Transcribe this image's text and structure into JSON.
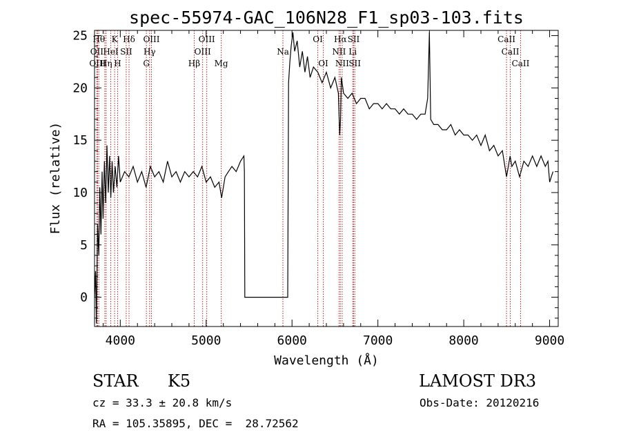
{
  "chart_data": {
    "type": "line",
    "title": "spec-55974-GAC_106N28_F1_sp03-103.fits",
    "xlabel": "Wavelength (Å)",
    "ylabel": "Flux (relative)",
    "xlim": [
      3700,
      9100
    ],
    "ylim": [
      -2.8,
      25.5
    ],
    "xticks": [
      4000,
      5000,
      6000,
      7000,
      8000,
      9000
    ],
    "yticks": [
      0,
      5,
      10,
      15,
      20,
      25
    ],
    "series": [
      {
        "name": "flux",
        "points": [
          [
            3700,
            0
          ],
          [
            3712,
            2.5
          ],
          [
            3722,
            -2.5
          ],
          [
            3735,
            7.0
          ],
          [
            3750,
            4.0
          ],
          [
            3762,
            10.5
          ],
          [
            3775,
            6.0
          ],
          [
            3788,
            12.0
          ],
          [
            3800,
            7.5
          ],
          [
            3815,
            13.0
          ],
          [
            3830,
            9.0
          ],
          [
            3845,
            14.5
          ],
          [
            3860,
            10.0
          ],
          [
            3875,
            13.5
          ],
          [
            3890,
            9.5
          ],
          [
            3905,
            13.0
          ],
          [
            3920,
            10.0
          ],
          [
            3940,
            12.5
          ],
          [
            3960,
            10.5
          ],
          [
            3980,
            13.5
          ],
          [
            4000,
            11.0
          ],
          [
            4050,
            12.0
          ],
          [
            4100,
            11.5
          ],
          [
            4150,
            12.5
          ],
          [
            4200,
            11.0
          ],
          [
            4250,
            12.0
          ],
          [
            4300,
            10.5
          ],
          [
            4350,
            12.5
          ],
          [
            4400,
            11.5
          ],
          [
            4450,
            12.0
          ],
          [
            4500,
            11.0
          ],
          [
            4550,
            13.0
          ],
          [
            4600,
            11.5
          ],
          [
            4650,
            12.0
          ],
          [
            4700,
            11.0
          ],
          [
            4750,
            12.0
          ],
          [
            4800,
            11.5
          ],
          [
            4850,
            12.0
          ],
          [
            4900,
            11.5
          ],
          [
            4950,
            12.5
          ],
          [
            5000,
            11.0
          ],
          [
            5050,
            11.5
          ],
          [
            5100,
            10.5
          ],
          [
            5150,
            11.0
          ],
          [
            5180,
            9.5
          ],
          [
            5220,
            11.5
          ],
          [
            5260,
            12.0
          ],
          [
            5300,
            12.5
          ],
          [
            5350,
            12.0
          ],
          [
            5400,
            13.0
          ],
          [
            5440,
            13.5
          ],
          [
            5445,
            12.0
          ],
          [
            5450,
            0
          ],
          [
            5900,
            0
          ],
          [
            5950,
            0
          ],
          [
            5960,
            20.5
          ],
          [
            5975,
            22.5
          ],
          [
            5990,
            24.0
          ],
          [
            6010,
            25.3
          ],
          [
            6030,
            23.5
          ],
          [
            6060,
            24.5
          ],
          [
            6090,
            22.0
          ],
          [
            6120,
            23.5
          ],
          [
            6150,
            21.5
          ],
          [
            6180,
            23.0
          ],
          [
            6210,
            21.0
          ],
          [
            6250,
            22.0
          ],
          [
            6300,
            21.5
          ],
          [
            6350,
            20.5
          ],
          [
            6400,
            21.5
          ],
          [
            6450,
            20.0
          ],
          [
            6500,
            21.0
          ],
          [
            6540,
            19.5
          ],
          [
            6555,
            15.5
          ],
          [
            6565,
            17.0
          ],
          [
            6575,
            21.0
          ],
          [
            6600,
            19.5
          ],
          [
            6650,
            19.0
          ],
          [
            6700,
            19.5
          ],
          [
            6750,
            18.5
          ],
          [
            6800,
            19.0
          ],
          [
            6850,
            19.0
          ],
          [
            6900,
            18.0
          ],
          [
            6950,
            18.5
          ],
          [
            7000,
            18.5
          ],
          [
            7050,
            18.0
          ],
          [
            7100,
            18.5
          ],
          [
            7150,
            18.0
          ],
          [
            7200,
            18.0
          ],
          [
            7250,
            17.5
          ],
          [
            7300,
            18.0
          ],
          [
            7350,
            17.5
          ],
          [
            7400,
            17.5
          ],
          [
            7450,
            17.0
          ],
          [
            7500,
            17.5
          ],
          [
            7550,
            17.5
          ],
          [
            7580,
            19.0
          ],
          [
            7600,
            25.3
          ],
          [
            7615,
            17.0
          ],
          [
            7650,
            16.5
          ],
          [
            7700,
            16.5
          ],
          [
            7750,
            16.0
          ],
          [
            7800,
            16.0
          ],
          [
            7850,
            16.5
          ],
          [
            7900,
            15.5
          ],
          [
            7950,
            16.0
          ],
          [
            8000,
            15.5
          ],
          [
            8050,
            15.5
          ],
          [
            8100,
            15.0
          ],
          [
            8150,
            15.5
          ],
          [
            8200,
            14.5
          ],
          [
            8250,
            15.5
          ],
          [
            8300,
            14.0
          ],
          [
            8350,
            14.5
          ],
          [
            8400,
            13.5
          ],
          [
            8450,
            14.0
          ],
          [
            8498,
            11.5
          ],
          [
            8540,
            13.5
          ],
          [
            8560,
            12.5
          ],
          [
            8600,
            13.0
          ],
          [
            8650,
            11.5
          ],
          [
            8700,
            13.0
          ],
          [
            8750,
            12.5
          ],
          [
            8800,
            13.5
          ],
          [
            8850,
            12.5
          ],
          [
            8900,
            13.5
          ],
          [
            8950,
            12.5
          ],
          [
            8980,
            13.0
          ],
          [
            9000,
            11.0
          ],
          [
            9020,
            11.5
          ],
          [
            9040,
            12.0
          ]
        ]
      }
    ],
    "lines": [
      {
        "w": 3750,
        "label": "Hθ"
      },
      {
        "w": 3727,
        "label": "OII"
      },
      {
        "w": 3735,
        "label": "OIII"
      },
      {
        "w": 3820,
        "label": "HeI"
      },
      {
        "w": 3835,
        "label": "Hη"
      },
      {
        "w": 3889,
        "label": "HeI"
      },
      {
        "w": 3934,
        "label": "K"
      },
      {
        "w": 3969,
        "label": "H"
      },
      {
        "w": 4069,
        "label": "SII"
      },
      {
        "w": 4102,
        "label": "Hδ"
      },
      {
        "w": 4304,
        "label": "G"
      },
      {
        "w": 4341,
        "label": "Hγ"
      },
      {
        "w": 4363,
        "label": "OIII"
      },
      {
        "w": 4861,
        "label": "Hβ"
      },
      {
        "w": 4959,
        "label": "OIII"
      },
      {
        "w": 5007,
        "label": "OIII"
      },
      {
        "w": 5175,
        "label": "Mg"
      },
      {
        "w": 5894,
        "label": "Na"
      },
      {
        "w": 6300,
        "label": "OI"
      },
      {
        "w": 6364,
        "label": "OI"
      },
      {
        "w": 6548,
        "label": "NII"
      },
      {
        "w": 6563,
        "label": "Hα"
      },
      {
        "w": 6584,
        "label": "NII"
      },
      {
        "w": 6707,
        "label": "Li"
      },
      {
        "w": 6717,
        "label": "SII"
      },
      {
        "w": 6731,
        "label": "SII"
      },
      {
        "w": 8498,
        "label": "CaII"
      },
      {
        "w": 8542,
        "label": "CaII"
      },
      {
        "w": 8662,
        "label": "CaII"
      }
    ],
    "line_labels": [
      {
        "text": "Hθ",
        "w": 3750,
        "row": 0
      },
      {
        "text": "K",
        "w": 3934,
        "row": 0
      },
      {
        "text": "Hδ",
        "w": 4102,
        "row": 0
      },
      {
        "text": "OIII",
        "w": 4363,
        "row": 0
      },
      {
        "text": "OIII",
        "w": 5007,
        "row": 0
      },
      {
        "text": "OI",
        "w": 6300,
        "row": 0
      },
      {
        "text": "Hα",
        "w": 6563,
        "row": 0
      },
      {
        "text": "SII",
        "w": 6717,
        "row": 0
      },
      {
        "text": "CaII",
        "w": 8498,
        "row": 0
      },
      {
        "text": "OII",
        "w": 3727,
        "row": 1
      },
      {
        "text": "HeI",
        "w": 3889,
        "row": 1
      },
      {
        "text": "SII",
        "w": 4069,
        "row": 1
      },
      {
        "text": "Hγ",
        "w": 4341,
        "row": 1
      },
      {
        "text": "OIII",
        "w": 4959,
        "row": 1
      },
      {
        "text": "Na",
        "w": 5894,
        "row": 1
      },
      {
        "text": "NII",
        "w": 6548,
        "row": 1
      },
      {
        "text": "Li",
        "w": 6707,
        "row": 1
      },
      {
        "text": "CaII",
        "w": 8542,
        "row": 1
      },
      {
        "text": "OIII",
        "w": 3735,
        "row": 2
      },
      {
        "text": "Hη",
        "w": 3835,
        "row": 2
      },
      {
        "text": "H",
        "w": 3969,
        "row": 2
      },
      {
        "text": "G",
        "w": 4304,
        "row": 2
      },
      {
        "text": "Hβ",
        "w": 4861,
        "row": 2
      },
      {
        "text": "Mg",
        "w": 5175,
        "row": 2
      },
      {
        "text": "OI",
        "w": 6364,
        "row": 2
      },
      {
        "text": "NII",
        "w": 6584,
        "row": 2
      },
      {
        "text": "SII",
        "w": 6731,
        "row": 2
      },
      {
        "text": "CaII",
        "w": 8662,
        "row": 2
      }
    ]
  },
  "info": {
    "class_label": "STAR",
    "subclass_label": "K5",
    "survey": "LAMOST DR3",
    "cz": "cz = 33.3 ± 20.8 km/s",
    "obs_date": "Obs-Date: 20120216",
    "coords": "RA = 105.35895, DEC =  28.72562"
  },
  "colors": {
    "line_markers": "#b22222",
    "spectrum": "#000000",
    "background": "#ffffff"
  }
}
